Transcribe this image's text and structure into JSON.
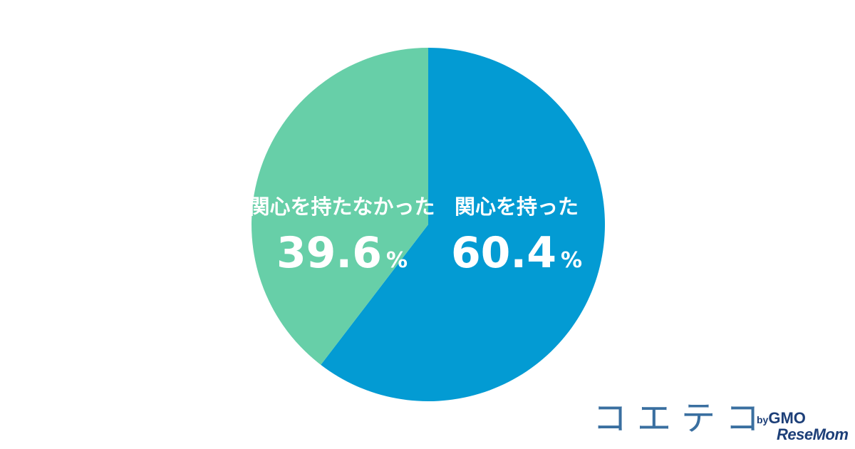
{
  "chart_data": {
    "type": "pie",
    "categories": [
      "関心を持った",
      "関心を持たなかった"
    ],
    "values": [
      60.4,
      39.6
    ],
    "unit": "%",
    "colors": [
      "#039bd3",
      "#67cfa8"
    ],
    "start_angle_deg": 0,
    "direction": "clockwise"
  },
  "brand": {
    "logo_main": "コエテコ",
    "logo_by": "by",
    "logo_gmo": "GMO",
    "logo_sub": "ReseMom"
  }
}
